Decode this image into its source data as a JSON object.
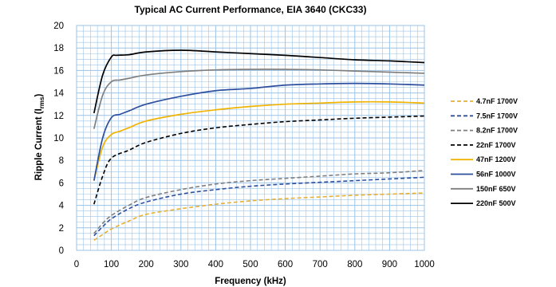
{
  "chart_data": {
    "type": "line",
    "title": "Typical AC Current Performance, EIA 3640 (CKC33)",
    "xlabel": "Frequency (kHz)",
    "ylabel_main": "Ripple Current (I",
    "ylabel_sub": "rms",
    "ylabel_close": ")",
    "xlim": [
      0,
      1000
    ],
    "ylim": [
      0,
      20
    ],
    "xticks": [
      0,
      100,
      200,
      300,
      400,
      500,
      600,
      700,
      800,
      900,
      1000
    ],
    "yticks": [
      0,
      2,
      4,
      6,
      8,
      10,
      12,
      14,
      16,
      18,
      20
    ],
    "grid": true,
    "grid_color": "#9cc3e5",
    "legend_position": "right",
    "series": [
      {
        "name": "4.7nF 1700V",
        "color": "#e8b030",
        "dash": true,
        "x": [
          50,
          75,
          100,
          150,
          200,
          300,
          400,
          500,
          600,
          700,
          800,
          900,
          1000
        ],
        "y": [
          0.9,
          1.4,
          1.9,
          2.6,
          3.2,
          3.7,
          4.1,
          4.4,
          4.6,
          4.75,
          4.9,
          5.0,
          5.1
        ]
      },
      {
        "name": "7.5nF 1700V",
        "color": "#2e4f9e",
        "dash": true,
        "x": [
          50,
          75,
          100,
          150,
          200,
          300,
          400,
          500,
          600,
          700,
          800,
          900,
          1000
        ],
        "y": [
          1.3,
          2.1,
          2.8,
          3.7,
          4.3,
          5.0,
          5.4,
          5.7,
          5.9,
          6.05,
          6.2,
          6.35,
          6.5
        ]
      },
      {
        "name": "8.2nF 1700V",
        "color": "#7f7f7f",
        "dash": true,
        "x": [
          50,
          75,
          100,
          150,
          200,
          300,
          400,
          500,
          600,
          700,
          800,
          900,
          1000
        ],
        "y": [
          1.5,
          2.4,
          3.1,
          4.0,
          4.7,
          5.4,
          5.9,
          6.2,
          6.4,
          6.6,
          6.8,
          6.9,
          7.1
        ]
      },
      {
        "name": "22nF 1700V",
        "color": "#000000",
        "dash": true,
        "x": [
          50,
          75,
          100,
          150,
          200,
          300,
          400,
          500,
          600,
          700,
          800,
          900,
          1000
        ],
        "y": [
          4.1,
          6.6,
          8.2,
          8.9,
          9.6,
          10.4,
          10.9,
          11.2,
          11.45,
          11.6,
          11.75,
          11.85,
          11.95
        ]
      },
      {
        "name": "47nF 1200V",
        "color": "#f0b400",
        "dash": false,
        "x": [
          50,
          75,
          100,
          125,
          150,
          200,
          300,
          400,
          500,
          600,
          700,
          800,
          900,
          1000
        ],
        "y": [
          6.2,
          9.2,
          10.3,
          10.6,
          10.9,
          11.5,
          12.1,
          12.5,
          12.8,
          13.0,
          13.1,
          13.2,
          13.2,
          13.1
        ]
      },
      {
        "name": "56nF 1000V",
        "color": "#2e4f9e",
        "dash": false,
        "x": [
          50,
          75,
          100,
          125,
          150,
          200,
          300,
          400,
          500,
          600,
          700,
          800,
          900,
          1000
        ],
        "y": [
          6.2,
          10.0,
          11.8,
          12.1,
          12.4,
          13.0,
          13.7,
          14.2,
          14.4,
          14.7,
          14.8,
          14.85,
          14.8,
          14.7
        ]
      },
      {
        "name": "150nF 650V",
        "color": "#7f7f7f",
        "dash": false,
        "x": [
          50,
          75,
          100,
          125,
          150,
          200,
          300,
          400,
          500,
          600,
          700,
          800,
          900,
          1000
        ],
        "y": [
          10.8,
          13.8,
          15.0,
          15.15,
          15.3,
          15.6,
          15.9,
          16.05,
          16.1,
          16.1,
          16.05,
          15.95,
          15.85,
          15.75
        ]
      },
      {
        "name": "220nF 500V",
        "color": "#000000",
        "dash": false,
        "x": [
          50,
          75,
          100,
          115,
          150,
          200,
          300,
          400,
          500,
          600,
          700,
          800,
          900,
          1000
        ],
        "y": [
          12.2,
          15.6,
          17.2,
          17.35,
          17.4,
          17.65,
          17.8,
          17.65,
          17.5,
          17.35,
          17.15,
          16.95,
          16.85,
          16.7
        ]
      }
    ]
  }
}
